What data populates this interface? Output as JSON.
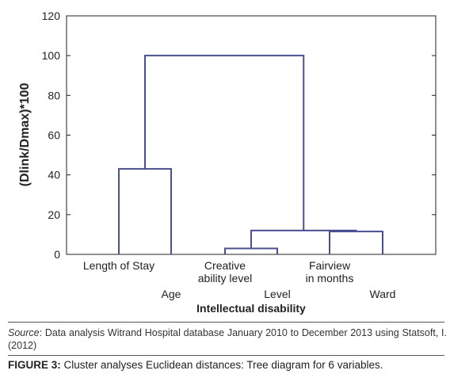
{
  "chart_data": {
    "type": "dendrogram",
    "title": "",
    "ylabel": "(Dlink/Dmax)*100",
    "xlabel": "",
    "ylim": [
      0,
      120
    ],
    "y_ticks": [
      0,
      20,
      40,
      60,
      80,
      100,
      120
    ],
    "leaves": [
      {
        "label": "Length of Stay",
        "row": 1
      },
      {
        "label": "Age",
        "row": 2
      },
      {
        "label": "Creative ability level",
        "row": 1
      },
      {
        "label": "Intellectual disability Level",
        "row": 2
      },
      {
        "label": "Fairview in months",
        "row": 1
      },
      {
        "label": "Ward",
        "row": 2
      }
    ],
    "merges": [
      {
        "left": "leaf:2",
        "right": "leaf:3",
        "height": 3
      },
      {
        "left": "leaf:4",
        "right": "leaf:5",
        "height": 11.5
      },
      {
        "left": "merge:0",
        "right": "merge:1",
        "height": 12
      },
      {
        "left": "leaf:0",
        "right": "leaf:1",
        "height": 43
      },
      {
        "left": "merge:3",
        "right": "merge:2",
        "height": 100
      }
    ],
    "line_color": "#4a4f8f",
    "grid": false
  },
  "labels": {
    "leaf0": "Length of Stay",
    "leaf1": "Age",
    "leaf2a": "Creative",
    "leaf2b": "ability level",
    "leaf3a": "Level",
    "leaf3b": "Intellectual disability",
    "leaf4a": "Fairview",
    "leaf4b": "in months",
    "leaf5": "Ward"
  },
  "source": {
    "prefix": "Source",
    "text": ": Data analysis Witrand Hospital database January 2010 to December 2013 using Statsoft, I. (2012)"
  },
  "caption": {
    "prefix": "FIGURE 3:",
    "text": " Cluster analyses Euclidean distances: Tree diagram for 6 variables."
  }
}
